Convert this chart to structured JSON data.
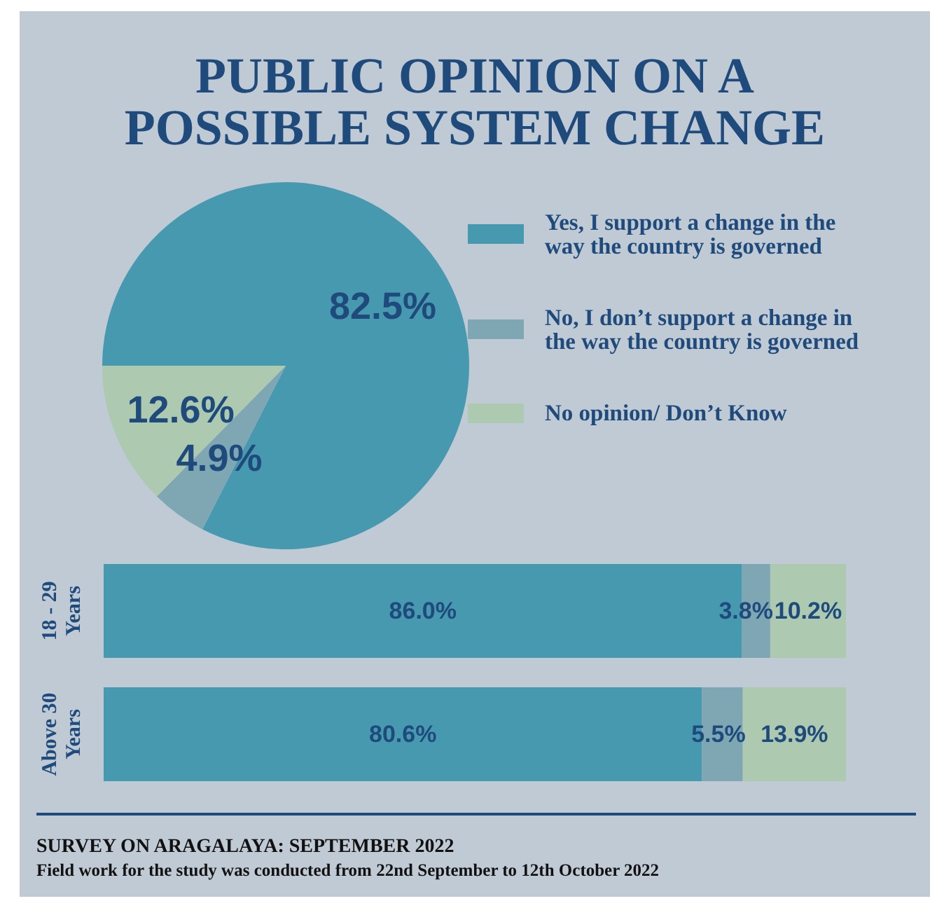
{
  "chart_data": [
    {
      "type": "pie",
      "title": "PUBLIC OPINION ON A POSSIBLE SYSTEM CHANGE",
      "categories": [
        "Yes, I support a change in the way the country is governed",
        "No, I don’t support a change in the way the country is governed",
        "No opinion/ Don’t Know"
      ],
      "values": [
        82.5,
        4.9,
        12.6
      ],
      "colors": [
        "#4799b0",
        "#7ea6b3",
        "#adc9b0"
      ],
      "value_labels": [
        "82.5%",
        "4.9%",
        "12.6%"
      ],
      "legend": "right"
    },
    {
      "type": "bar",
      "orientation": "horizontal",
      "stacked": true,
      "categories": [
        "18 - 29 Years",
        "Above 30 Years"
      ],
      "xlim": [
        0,
        100
      ],
      "tick_labels": "y",
      "series": [
        {
          "color": "#4799b0",
          "values": [
            86.0,
            80.6
          ],
          "value_labels": [
            "86.0%",
            "80.6%"
          ]
        },
        {
          "color": "#7ea6b3",
          "values": [
            3.8,
            5.5
          ],
          "value_labels": [
            "3.8%",
            "5.5%"
          ]
        },
        {
          "color": "#adc9b0",
          "values": [
            10.2,
            13.9
          ],
          "value_labels": [
            "10.2%",
            "13.9%"
          ]
        }
      ],
      "annotations": [
        "SURVEY ON ARAGALAYA: SEPTEMBER 2022",
        "Field work for the study was conducted from 22nd September to 12th October 2022"
      ]
    }
  ]
}
